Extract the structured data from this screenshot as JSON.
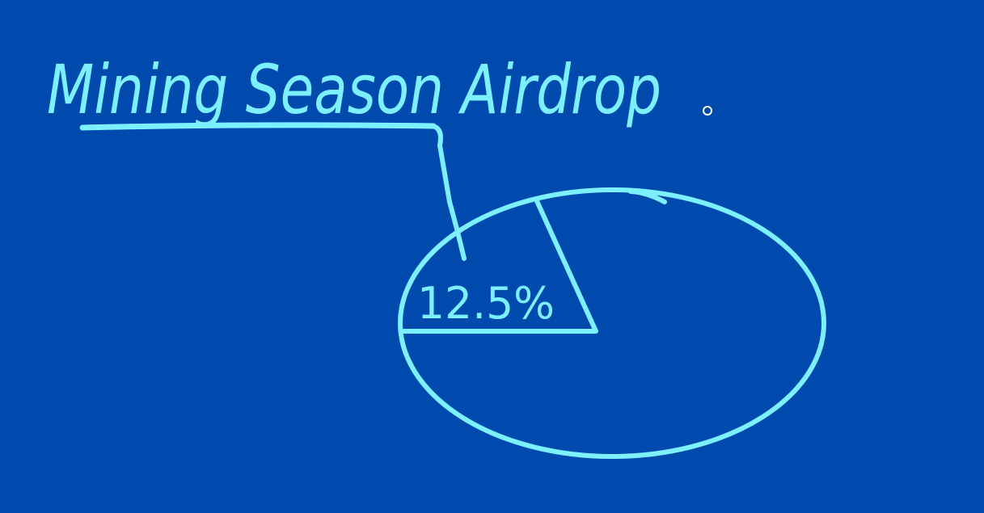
{
  "colors": {
    "background": "#004aad",
    "ink": "#7cf0ff",
    "cursor": "#ffffff"
  },
  "title": "Mining Season Airdrop",
  "chart_data": {
    "type": "pie",
    "title": "Mining Season Airdrop",
    "slices": [
      {
        "label": "12.5%",
        "value": 12.5
      },
      {
        "label": "",
        "value": 87.5
      }
    ],
    "labels_shown": [
      "12.5%"
    ]
  },
  "icons": {
    "cursor": "pen-cursor-icon"
  }
}
